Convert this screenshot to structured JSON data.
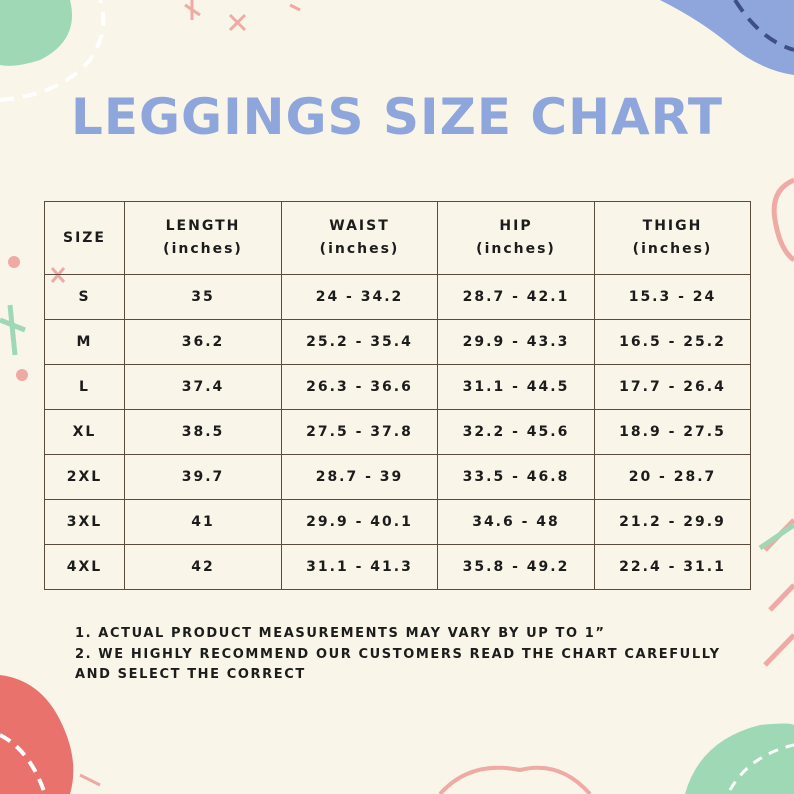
{
  "header": {
    "title": "LEGGINGS SIZE CHART"
  },
  "table": {
    "columns": [
      [
        "SIZE"
      ],
      [
        "LENGTH",
        "(inches)"
      ],
      [
        "WAIST",
        "(inches)"
      ],
      [
        "HIP",
        "(inches)"
      ],
      [
        "THIGH",
        "(inches)"
      ]
    ],
    "rows": [
      [
        "S",
        "35",
        "24 - 34.2",
        "28.7 - 42.1",
        "15.3 - 24"
      ],
      [
        "M",
        "36.2",
        "25.2 - 35.4",
        "29.9 - 43.3",
        "16.5 - 25.2"
      ],
      [
        "L",
        "37.4",
        "26.3 - 36.6",
        "31.1 - 44.5",
        "17.7 - 26.4"
      ],
      [
        "XL",
        "38.5",
        "27.5 - 37.8",
        "32.2 - 45.6",
        "18.9 - 27.5"
      ],
      [
        "2XL",
        "39.7",
        "28.7 - 39",
        "33.5 - 46.8",
        "20 - 28.7"
      ],
      [
        "3XL",
        "41",
        "29.9 - 40.1",
        "34.6 - 48",
        "21.2 - 29.9"
      ],
      [
        "4XL",
        "42",
        "31.1 - 41.3",
        "35.8 - 49.2",
        "22.4 - 31.1"
      ]
    ]
  },
  "notes": [
    "1. ACTUAL PRODUCT MEASUREMENTS MAY VARY BY UP TO 1”",
    "2. WE HIGHLY RECOMMEND OUR CUSTOMERS READ THE CHART CAREFULLY",
    "AND SELECT THE CORRECT"
  ]
}
